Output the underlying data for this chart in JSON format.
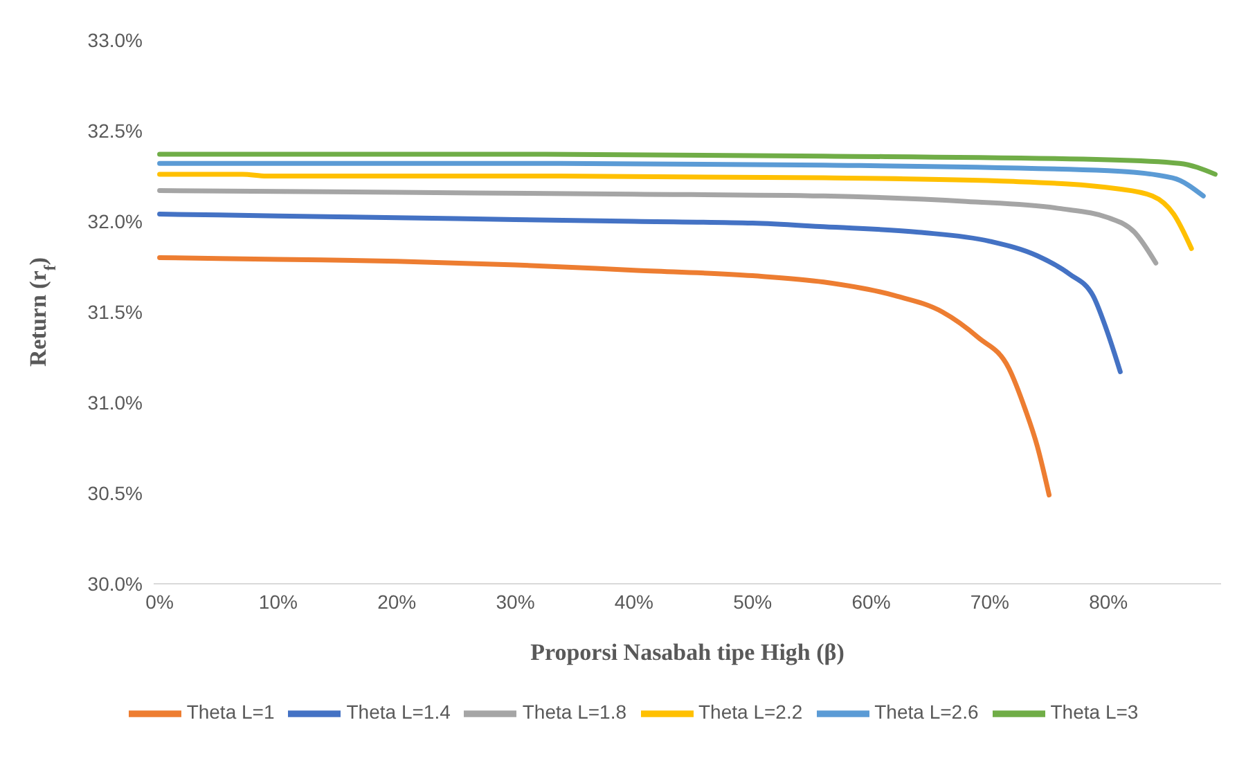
{
  "chart_data": {
    "type": "line",
    "xlabel": "Proporsi Nasabah tipe High (β)",
    "ylabel": "Return (r$_{f}$)",
    "xlim": [
      -0.5,
      89.5
    ],
    "xticks": [
      {
        "value": 0,
        "label": "0%"
      },
      {
        "value": 10,
        "label": "10%"
      },
      {
        "value": 20,
        "label": "20%"
      },
      {
        "value": 30,
        "label": "30%"
      },
      {
        "value": 40,
        "label": "40%"
      },
      {
        "value": 50,
        "label": "50%"
      },
      {
        "value": 60,
        "label": "60%"
      },
      {
        "value": 70,
        "label": "70%"
      },
      {
        "value": 80,
        "label": "80%"
      }
    ],
    "ylim": [
      30,
      33
    ],
    "yticks": [
      {
        "value": 30,
        "label": "30.0%"
      },
      {
        "value": 30.5,
        "label": "30.5%"
      },
      {
        "value": 31,
        "label": "31.0%"
      },
      {
        "value": 31.5,
        "label": "31.5%"
      },
      {
        "value": 32,
        "label": "32.0%"
      },
      {
        "value": 32.5,
        "label": "32.5%"
      },
      {
        "value": 33,
        "label": "33.0%"
      }
    ],
    "grid": false,
    "legend": "bottom",
    "marker": "none",
    "line_style": "solid",
    "series": [
      {
        "name": "Theta L=1",
        "color": "#ed7d31",
        "x": [
          0,
          10,
          20,
          30,
          40,
          50,
          56,
          62,
          66,
          69,
          71.6,
          73,
          74,
          75
        ],
        "values": [
          31.8,
          31.79,
          31.78,
          31.76,
          31.73,
          31.7,
          31.665,
          31.59,
          31.5,
          31.36,
          31.19,
          30.96,
          30.76,
          30.49
        ]
      },
      {
        "name": "Theta L=1.4",
        "color": "#4472c4",
        "x": [
          0,
          10,
          20,
          30,
          40,
          50,
          56,
          64,
          70,
          74,
          76.7,
          78.7,
          79.8,
          81
        ],
        "values": [
          32.04,
          32.03,
          32.02,
          32.01,
          32.0,
          31.99,
          31.97,
          31.94,
          31.89,
          31.81,
          31.71,
          31.59,
          31.41,
          31.17
        ]
      },
      {
        "name": "Theta L=1.8",
        "color": "#a5a5a5",
        "x": [
          0,
          20,
          40,
          56,
          68,
          76,
          80,
          82.2,
          84
        ],
        "values": [
          32.17,
          32.16,
          32.15,
          32.14,
          32.11,
          32.07,
          32.02,
          31.94,
          31.77
        ]
      },
      {
        "name": "Theta L=2.2",
        "color": "#ffc000",
        "x": [
          0,
          7,
          9,
          30,
          56,
          72,
          80.7,
          83.7,
          85.5,
          87
        ],
        "values": [
          32.26,
          32.26,
          32.25,
          32.25,
          32.24,
          32.22,
          32.18,
          32.14,
          32.04,
          31.85
        ]
      },
      {
        "name": "Theta L=2.6",
        "color": "#5b9bd5",
        "x": [
          0,
          30,
          56,
          80,
          85.4,
          88
        ],
        "values": [
          32.32,
          32.32,
          32.31,
          32.28,
          32.24,
          32.14
        ]
      },
      {
        "name": "Theta L=3",
        "color": "#70ad47",
        "x": [
          0,
          30,
          56,
          80,
          86,
          89
        ],
        "values": [
          32.37,
          32.37,
          32.36,
          32.34,
          32.32,
          32.26
        ]
      }
    ]
  }
}
